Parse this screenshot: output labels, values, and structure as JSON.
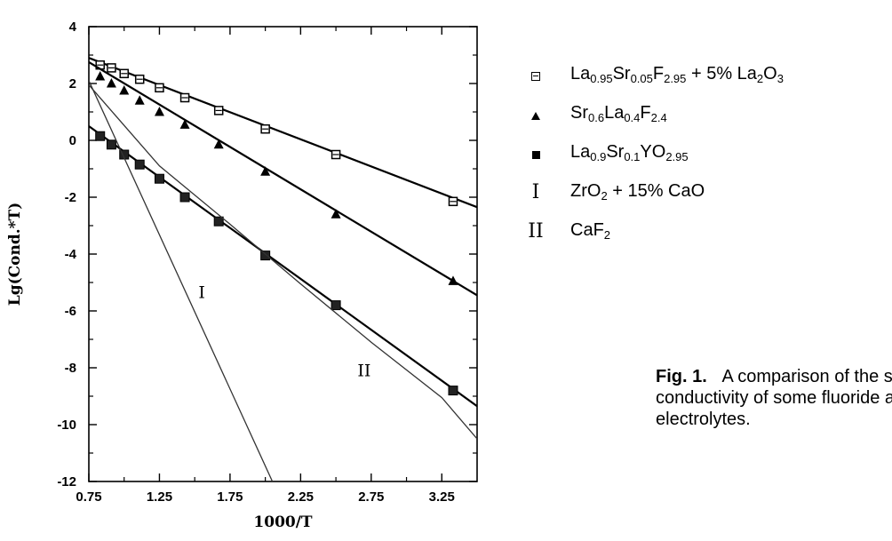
{
  "chart_data": {
    "type": "line",
    "xlabel": "1000/T",
    "ylabel": "Lg(Cond.*T)",
    "xlim": [
      0.75,
      3.5
    ],
    "ylim": [
      -12,
      4
    ],
    "xticks": [
      "0.75",
      "1.25",
      "1.75",
      "2.25",
      "2.75",
      "3.25"
    ],
    "yticks": [
      "4",
      "2",
      "0",
      "-2",
      "-4",
      "-6",
      "-8",
      "-10",
      "-12"
    ],
    "grid": false,
    "legend_position": "right",
    "series": [
      {
        "name": "La0.95Sr0.05F2.95 + 5% La2O3",
        "marker": "open-square",
        "x": [
          0.83,
          0.91,
          1.0,
          1.11,
          1.25,
          1.43,
          1.67,
          2.0,
          2.5,
          3.33
        ],
        "y": [
          2.65,
          2.55,
          2.35,
          2.15,
          1.85,
          1.5,
          1.05,
          0.4,
          -0.5,
          -2.15
        ],
        "fit": [
          [
            0.75,
            2.9
          ],
          [
            3.5,
            -2.35
          ]
        ]
      },
      {
        "name": "Sr0.6La0.4F2.4",
        "marker": "triangle",
        "x": [
          0.83,
          0.91,
          1.0,
          1.11,
          1.25,
          1.43,
          1.67,
          2.0,
          2.5,
          3.33
        ],
        "y": [
          2.25,
          2.0,
          1.75,
          1.4,
          1.0,
          0.55,
          -0.15,
          -1.1,
          -2.6,
          -4.95
        ],
        "fit": [
          [
            0.75,
            2.75
          ],
          [
            3.5,
            -5.45
          ]
        ]
      },
      {
        "name": "La0.9Sr0.1YO2.95",
        "marker": "filled-square",
        "x": [
          0.83,
          0.91,
          1.0,
          1.11,
          1.25,
          1.43,
          1.67,
          2.0,
          2.5,
          3.33
        ],
        "y": [
          0.15,
          -0.15,
          -0.5,
          -0.85,
          -1.35,
          -2.0,
          -2.85,
          -4.05,
          -5.8,
          -8.8
        ],
        "fit": [
          [
            0.75,
            0.5
          ],
          [
            3.5,
            -9.35
          ]
        ]
      },
      {
        "name": "ZrO2 + 15% CaO",
        "label": "I",
        "marker": "none",
        "fit": [
          [
            0.75,
            2.1
          ],
          [
            2.05,
            -12
          ]
        ]
      },
      {
        "name": "CaF2",
        "label": "II",
        "marker": "none",
        "fit": [
          [
            0.75,
            1.95
          ],
          [
            1.25,
            -0.9
          ],
          [
            1.75,
            -2.95
          ],
          [
            2.25,
            -5.05
          ],
          [
            2.75,
            -7.1
          ],
          [
            3.25,
            -9.05
          ],
          [
            3.5,
            -10.5
          ]
        ]
      }
    ]
  },
  "legend": [
    {
      "symbol": "open-square",
      "parts": [
        [
          "La",
          ""
        ],
        [
          "0.95",
          "sub"
        ],
        [
          "Sr",
          ""
        ],
        [
          "0.05",
          "sub"
        ],
        [
          "F",
          ""
        ],
        [
          "2.95",
          "sub"
        ],
        [
          " + 5% La",
          ""
        ],
        [
          "2",
          "sub"
        ],
        [
          "O",
          ""
        ],
        [
          "3",
          "sub"
        ]
      ]
    },
    {
      "symbol": "triangle",
      "parts": [
        [
          "Sr",
          ""
        ],
        [
          "0.6",
          "sub"
        ],
        [
          "La",
          ""
        ],
        [
          "0.4",
          "sub"
        ],
        [
          "F",
          ""
        ],
        [
          "2.4",
          "sub"
        ]
      ]
    },
    {
      "symbol": "filled-square",
      "parts": [
        [
          "La",
          ""
        ],
        [
          "0.9",
          "sub"
        ],
        [
          "Sr",
          ""
        ],
        [
          "0.1",
          "sub"
        ],
        [
          "YO",
          ""
        ],
        [
          "2.95",
          "sub"
        ]
      ]
    },
    {
      "symbol": "I",
      "parts": [
        [
          "ZrO",
          ""
        ],
        [
          "2",
          "sub"
        ],
        [
          " + 15% CaO",
          ""
        ]
      ]
    },
    {
      "symbol": "II",
      "parts": [
        [
          "CaF",
          ""
        ],
        [
          "2",
          "sub"
        ]
      ]
    }
  ],
  "caption": {
    "fig": "Fig. 1.",
    "line1": "A comparison of the s",
    "line2": "conductivity of some fluoride an",
    "line3": "electrolytes."
  }
}
